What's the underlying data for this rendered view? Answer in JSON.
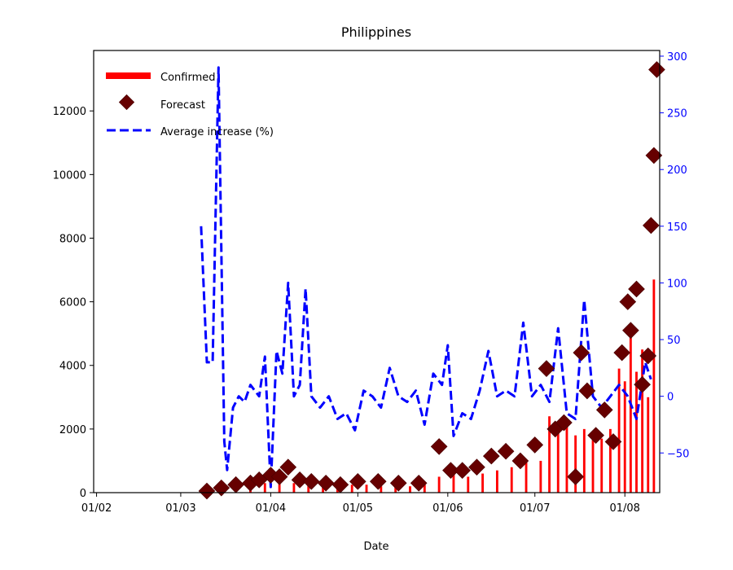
{
  "chart_data": {
    "type": "bar",
    "title": "Philippines",
    "xlabel": "Date",
    "ylabel": "",
    "ylabel_right": "",
    "x_ticks": [
      "01/02",
      "01/03",
      "01/04",
      "01/05",
      "01/06",
      "01/07",
      "01/08"
    ],
    "x_range": [
      "2020-01-31",
      "2020-08-13"
    ],
    "ylim": [
      0,
      13900
    ],
    "ylim_right": [
      -85,
      305
    ],
    "y_ticks_left": [
      0,
      2000,
      4000,
      6000,
      8000,
      10000,
      12000
    ],
    "y_ticks_right": [
      -50,
      0,
      50,
      100,
      150,
      200,
      250,
      300
    ],
    "grid": false,
    "legend_position": "top-left",
    "colors": {
      "confirmed": "#ff0000",
      "forecast": "#660000",
      "average_increase": "#0000ff",
      "right_axis": "#0000ff"
    },
    "series": [
      {
        "name": "Confirmed",
        "kind": "bar",
        "axis": "left",
        "points": [
          [
            "2020-03-10",
            50
          ],
          [
            "2020-03-15",
            80
          ],
          [
            "2020-03-20",
            150
          ],
          [
            "2020-03-25",
            200
          ],
          [
            "2020-03-30",
            300
          ],
          [
            "2020-04-04",
            350
          ],
          [
            "2020-04-09",
            300
          ],
          [
            "2020-04-14",
            250
          ],
          [
            "2020-04-19",
            200
          ],
          [
            "2020-04-24",
            200
          ],
          [
            "2020-04-29",
            250
          ],
          [
            "2020-05-04",
            250
          ],
          [
            "2020-05-09",
            200
          ],
          [
            "2020-05-14",
            250
          ],
          [
            "2020-05-19",
            200
          ],
          [
            "2020-05-24",
            250
          ],
          [
            "2020-05-29",
            500
          ],
          [
            "2020-06-03",
            600
          ],
          [
            "2020-06-08",
            500
          ],
          [
            "2020-06-13",
            600
          ],
          [
            "2020-06-18",
            700
          ],
          [
            "2020-06-23",
            800
          ],
          [
            "2020-06-28",
            1000
          ],
          [
            "2020-07-03",
            1000
          ],
          [
            "2020-07-06",
            2400
          ],
          [
            "2020-07-09",
            2000
          ],
          [
            "2020-07-12",
            2300
          ],
          [
            "2020-07-15",
            1800
          ],
          [
            "2020-07-18",
            2000
          ],
          [
            "2020-07-21",
            1800
          ],
          [
            "2020-07-24",
            1700
          ],
          [
            "2020-07-27",
            2000
          ],
          [
            "2020-07-30",
            3900
          ],
          [
            "2020-08-01",
            3500
          ],
          [
            "2020-08-03",
            5000
          ],
          [
            "2020-08-05",
            3800
          ],
          [
            "2020-08-07",
            4500
          ],
          [
            "2020-08-09",
            3000
          ],
          [
            "2020-08-11",
            6700
          ]
        ]
      },
      {
        "name": "Forecast",
        "kind": "scatter",
        "axis": "left",
        "points": [
          [
            "2020-03-10",
            50
          ],
          [
            "2020-03-15",
            150
          ],
          [
            "2020-03-20",
            250
          ],
          [
            "2020-03-25",
            300
          ],
          [
            "2020-03-28",
            400
          ],
          [
            "2020-04-01",
            550
          ],
          [
            "2020-04-04",
            500
          ],
          [
            "2020-04-07",
            800
          ],
          [
            "2020-04-11",
            400
          ],
          [
            "2020-04-15",
            350
          ],
          [
            "2020-04-20",
            300
          ],
          [
            "2020-04-25",
            250
          ],
          [
            "2020-05-01",
            350
          ],
          [
            "2020-05-08",
            350
          ],
          [
            "2020-05-15",
            300
          ],
          [
            "2020-05-22",
            300
          ],
          [
            "2020-05-29",
            1450
          ],
          [
            "2020-06-02",
            700
          ],
          [
            "2020-06-06",
            700
          ],
          [
            "2020-06-11",
            800
          ],
          [
            "2020-06-16",
            1150
          ],
          [
            "2020-06-21",
            1300
          ],
          [
            "2020-06-26",
            1000
          ],
          [
            "2020-07-01",
            1500
          ],
          [
            "2020-07-05",
            3900
          ],
          [
            "2020-07-08",
            2000
          ],
          [
            "2020-07-11",
            2200
          ],
          [
            "2020-07-15",
            500
          ],
          [
            "2020-07-17",
            4400
          ],
          [
            "2020-07-19",
            3200
          ],
          [
            "2020-07-22",
            1800
          ],
          [
            "2020-07-25",
            2600
          ],
          [
            "2020-07-28",
            1600
          ],
          [
            "2020-07-31",
            4400
          ],
          [
            "2020-08-02",
            6000
          ],
          [
            "2020-08-03",
            5100
          ],
          [
            "2020-08-05",
            6400
          ],
          [
            "2020-08-07",
            3400
          ],
          [
            "2020-08-09",
            4300
          ],
          [
            "2020-08-10",
            8400
          ],
          [
            "2020-08-11",
            10600
          ],
          [
            "2020-08-12",
            13300
          ]
        ]
      },
      {
        "name": "Average increase (%)",
        "kind": "line",
        "axis": "right",
        "style": "dashed",
        "points": [
          [
            "2020-03-08",
            150
          ],
          [
            "2020-03-10",
            30
          ],
          [
            "2020-03-12",
            30
          ],
          [
            "2020-03-14",
            290
          ],
          [
            "2020-03-16",
            -40
          ],
          [
            "2020-03-17",
            -65
          ],
          [
            "2020-03-19",
            -10
          ],
          [
            "2020-03-21",
            0
          ],
          [
            "2020-03-23",
            -5
          ],
          [
            "2020-03-25",
            10
          ],
          [
            "2020-03-28",
            0
          ],
          [
            "2020-03-30",
            35
          ],
          [
            "2020-04-01",
            -80
          ],
          [
            "2020-04-03",
            40
          ],
          [
            "2020-04-05",
            20
          ],
          [
            "2020-04-07",
            100
          ],
          [
            "2020-04-09",
            0
          ],
          [
            "2020-04-11",
            10
          ],
          [
            "2020-04-13",
            95
          ],
          [
            "2020-04-15",
            0
          ],
          [
            "2020-04-18",
            -10
          ],
          [
            "2020-04-21",
            0
          ],
          [
            "2020-04-24",
            -20
          ],
          [
            "2020-04-27",
            -15
          ],
          [
            "2020-04-30",
            -30
          ],
          [
            "2020-05-03",
            5
          ],
          [
            "2020-05-06",
            0
          ],
          [
            "2020-05-09",
            -10
          ],
          [
            "2020-05-12",
            25
          ],
          [
            "2020-05-15",
            0
          ],
          [
            "2020-05-18",
            -5
          ],
          [
            "2020-05-21",
            5
          ],
          [
            "2020-05-24",
            -25
          ],
          [
            "2020-05-27",
            20
          ],
          [
            "2020-05-30",
            10
          ],
          [
            "2020-06-01",
            45
          ],
          [
            "2020-06-03",
            -35
          ],
          [
            "2020-06-06",
            -15
          ],
          [
            "2020-06-09",
            -20
          ],
          [
            "2020-06-12",
            5
          ],
          [
            "2020-06-15",
            40
          ],
          [
            "2020-06-18",
            0
          ],
          [
            "2020-06-21",
            5
          ],
          [
            "2020-06-24",
            0
          ],
          [
            "2020-06-27",
            65
          ],
          [
            "2020-06-30",
            0
          ],
          [
            "2020-07-03",
            10
          ],
          [
            "2020-07-06",
            -5
          ],
          [
            "2020-07-09",
            60
          ],
          [
            "2020-07-12",
            -15
          ],
          [
            "2020-07-15",
            -20
          ],
          [
            "2020-07-18",
            85
          ],
          [
            "2020-07-21",
            0
          ],
          [
            "2020-07-24",
            -10
          ],
          [
            "2020-07-27",
            0
          ],
          [
            "2020-07-30",
            10
          ],
          [
            "2020-08-02",
            0
          ],
          [
            "2020-08-05",
            -20
          ],
          [
            "2020-08-08",
            30
          ],
          [
            "2020-08-10",
            15
          ]
        ]
      }
    ]
  }
}
